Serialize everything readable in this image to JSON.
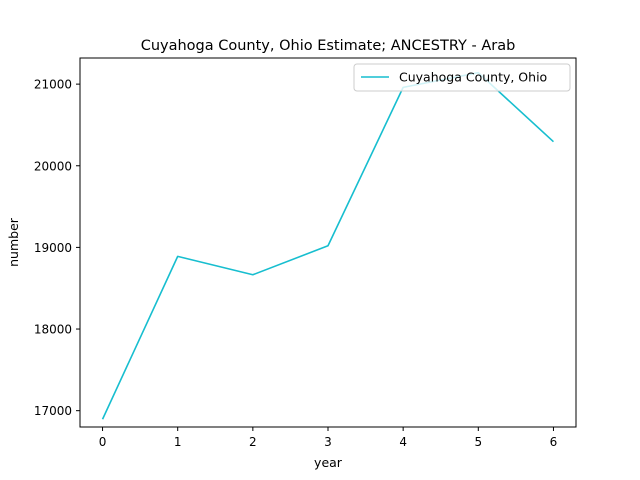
{
  "chart_data": {
    "type": "line",
    "title": "Cuyahoga County, Ohio Estimate; ANCESTRY - Arab",
    "xlabel": "year",
    "ylabel": "number",
    "x": [
      0,
      1,
      2,
      3,
      4,
      5,
      6
    ],
    "x_ticks": [
      "0",
      "1",
      "2",
      "3",
      "4",
      "5",
      "6"
    ],
    "y_ticks": [
      "17000",
      "18000",
      "19000",
      "20000",
      "21000"
    ],
    "xlim": [
      -0.3,
      6.3
    ],
    "ylim": [
      16800,
      21320
    ],
    "grid": false,
    "legend_position": "top-right",
    "series": [
      {
        "name": "Cuyahoga County, Ohio",
        "color": "#17becf",
        "values": [
          16895,
          18890,
          18665,
          19020,
          20960,
          21140,
          20295
        ]
      }
    ]
  }
}
